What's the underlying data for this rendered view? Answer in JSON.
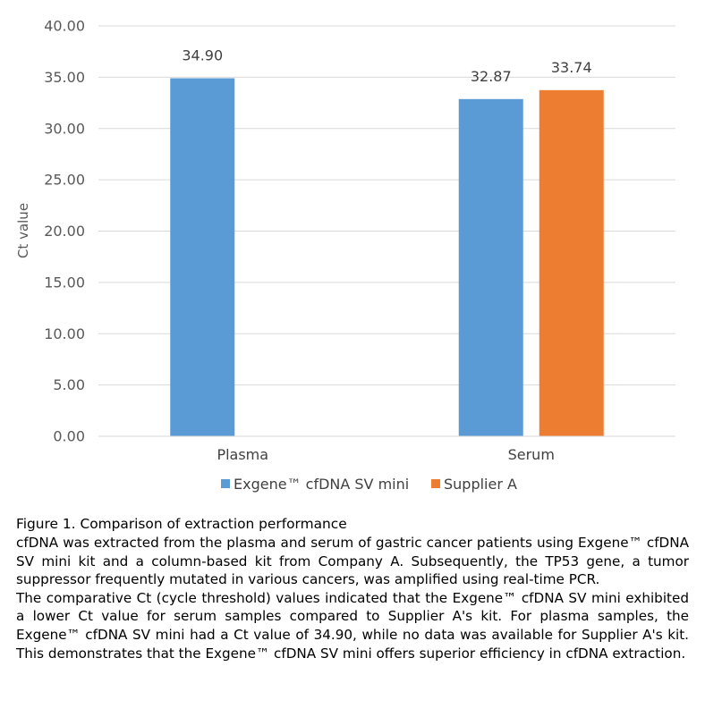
{
  "chart_data": {
    "type": "bar",
    "title": "",
    "xlabel": "",
    "ylabel": "Ct value",
    "ylim": [
      0,
      40
    ],
    "y_step": 5,
    "y_tick_labels": [
      "0.00",
      "5.00",
      "10.00",
      "15.00",
      "20.00",
      "25.00",
      "30.00",
      "35.00",
      "40.00"
    ],
    "grid": true,
    "legend_position": "bottom-center",
    "categories": [
      "Plasma",
      "Serum"
    ],
    "series": [
      {
        "name": "Exgene™ cfDNA SV mini",
        "color": "#5B9BD5",
        "values": [
          34.9,
          32.87
        ],
        "labels": [
          "34.90",
          "32.87"
        ]
      },
      {
        "name": "Supplier A",
        "color": "#ED7D31",
        "values": [
          null,
          33.74
        ],
        "labels": [
          "",
          "33.74"
        ]
      }
    ]
  },
  "caption": {
    "title": "Figure 1. Comparison of extraction performance",
    "paragraph1": "cfDNA was extracted from the plasma and serum of gastric cancer patients using Exgene™ cfDNA SV mini kit and a column-based kit from Company A. Subsequently, the TP53 gene, a tumor suppressor frequently mutated in various cancers, was amplified using real-time PCR.",
    "paragraph2": "The comparative Ct (cycle threshold) values indicated that the Exgene™ cfDNA SV mini exhibited a lower Ct value for serum samples compared to Supplier A's kit. For plasma samples, the Exgene™ cfDNA SV mini had a Ct value of 34.90, while no data was available for Supplier A's kit. This demonstrates that the Exgene™ cfDNA SV mini offers superior efficiency in cfDNA extraction."
  }
}
